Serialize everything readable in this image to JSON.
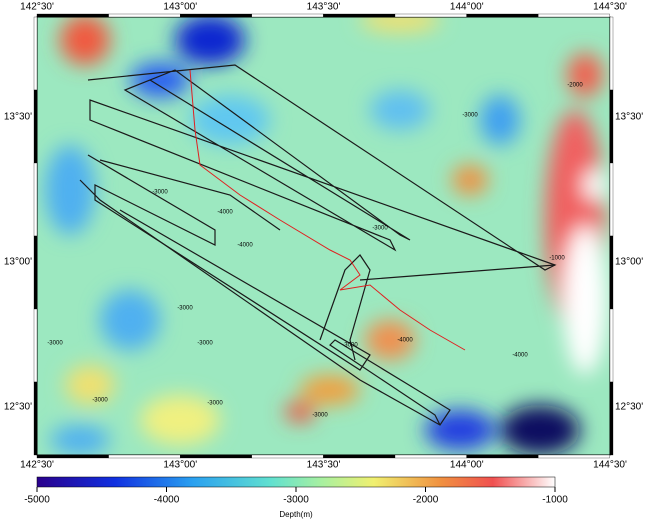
{
  "map": {
    "lon_labels": [
      "142°30'",
      "143°00'",
      "143°30'",
      "144°00'",
      "144°30'"
    ],
    "lat_labels": [
      "13°30'",
      "13°00'",
      "12°30'"
    ],
    "contour_labels": [
      "-3000",
      "-3000",
      "-4000",
      "-4000",
      "-3000",
      "-3000",
      "-3000",
      "-3000",
      "-3000",
      "-3000",
      "-4000",
      "-3000",
      "-2000",
      "-4000",
      "-1000",
      "-3000"
    ]
  },
  "colorbar": {
    "range": [
      -5000,
      -1000
    ],
    "ticks": [
      -5000,
      -4000,
      -3000,
      -2000,
      -1000
    ],
    "label": "Depth(m)"
  }
}
